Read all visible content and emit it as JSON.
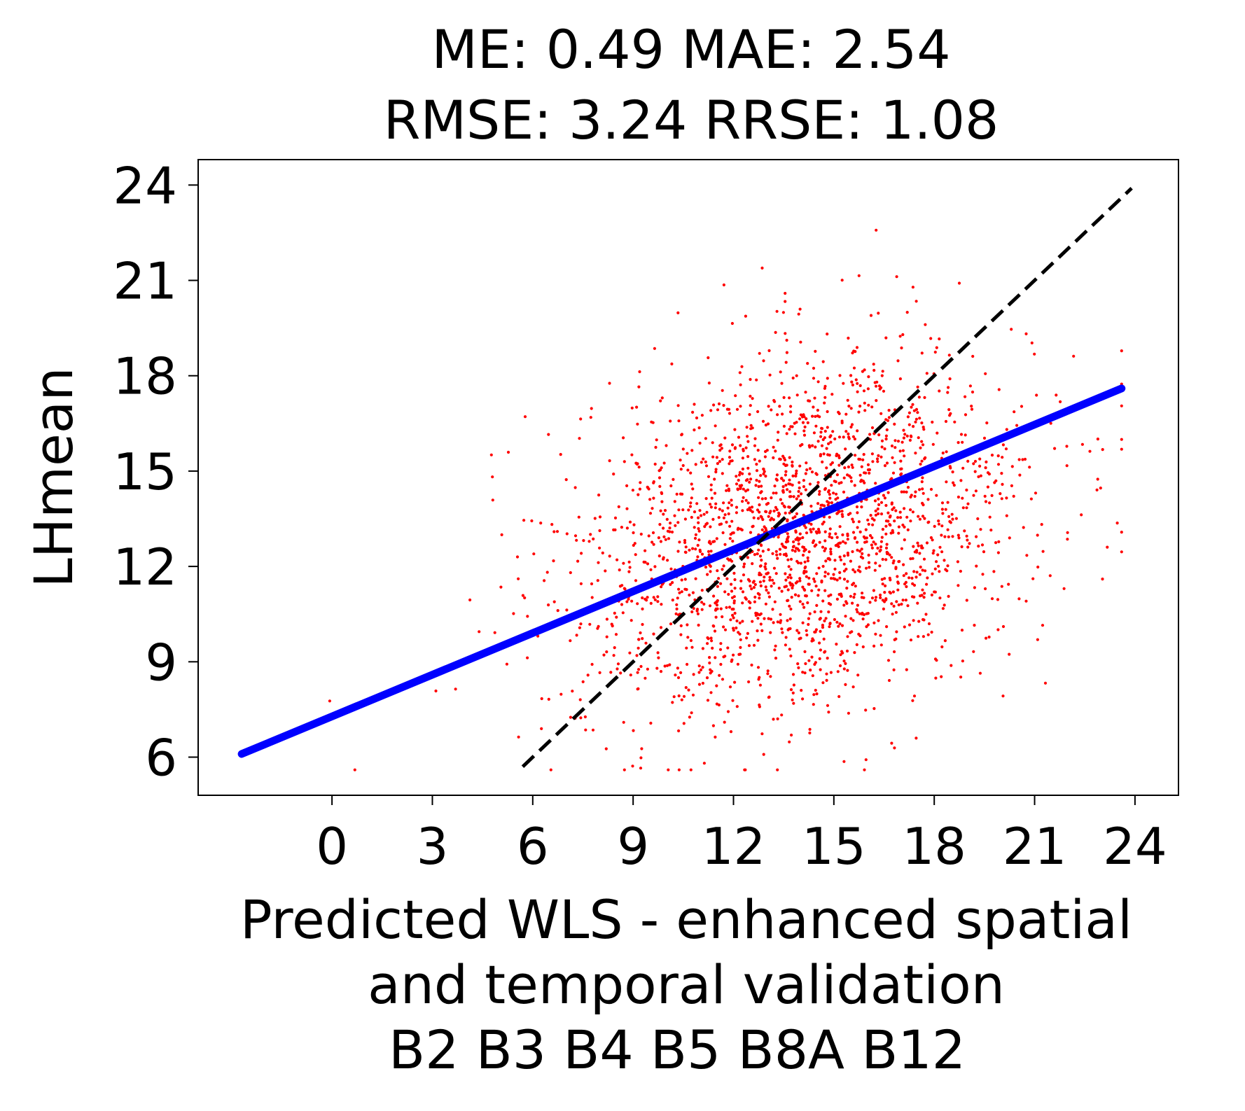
{
  "chart_data": {
    "type": "scatter",
    "title_lines": [
      "ME: 0.49 MAE: 2.54",
      "RMSE: 3.24 RRSE: 1.08"
    ],
    "xlabel_lines": [
      "Predicted WLS - enhanced spatial",
      "and temporal validation",
      "B2 B3 B4 B5 B8A B12"
    ],
    "ylabel": "LHmean",
    "xlim": [
      -4.0,
      25.3
    ],
    "ylim": [
      4.8,
      24.8
    ],
    "x_ticks": [
      0,
      3,
      6,
      9,
      12,
      15,
      18,
      21,
      24
    ],
    "y_ticks": [
      6,
      9,
      12,
      15,
      18,
      21,
      24
    ],
    "grid": false,
    "series": [
      {
        "kind": "points",
        "color": "#ff0000",
        "count": 2200,
        "x_mean": 14.0,
        "x_sd": 3.4,
        "y_mean": 13.0,
        "y_sd": 2.75,
        "x_range": [
          -2.7,
          23.6
        ],
        "y_range": [
          5.6,
          24.0
        ]
      },
      {
        "kind": "regression-line",
        "color": "#0000ff",
        "x": [
          -2.7,
          23.6
        ],
        "y": [
          6.1,
          17.6
        ]
      },
      {
        "kind": "identity-line",
        "color": "#000000",
        "dash": true,
        "x": [
          5.7,
          23.9
        ],
        "y": [
          5.7,
          23.9
        ]
      }
    ]
  }
}
